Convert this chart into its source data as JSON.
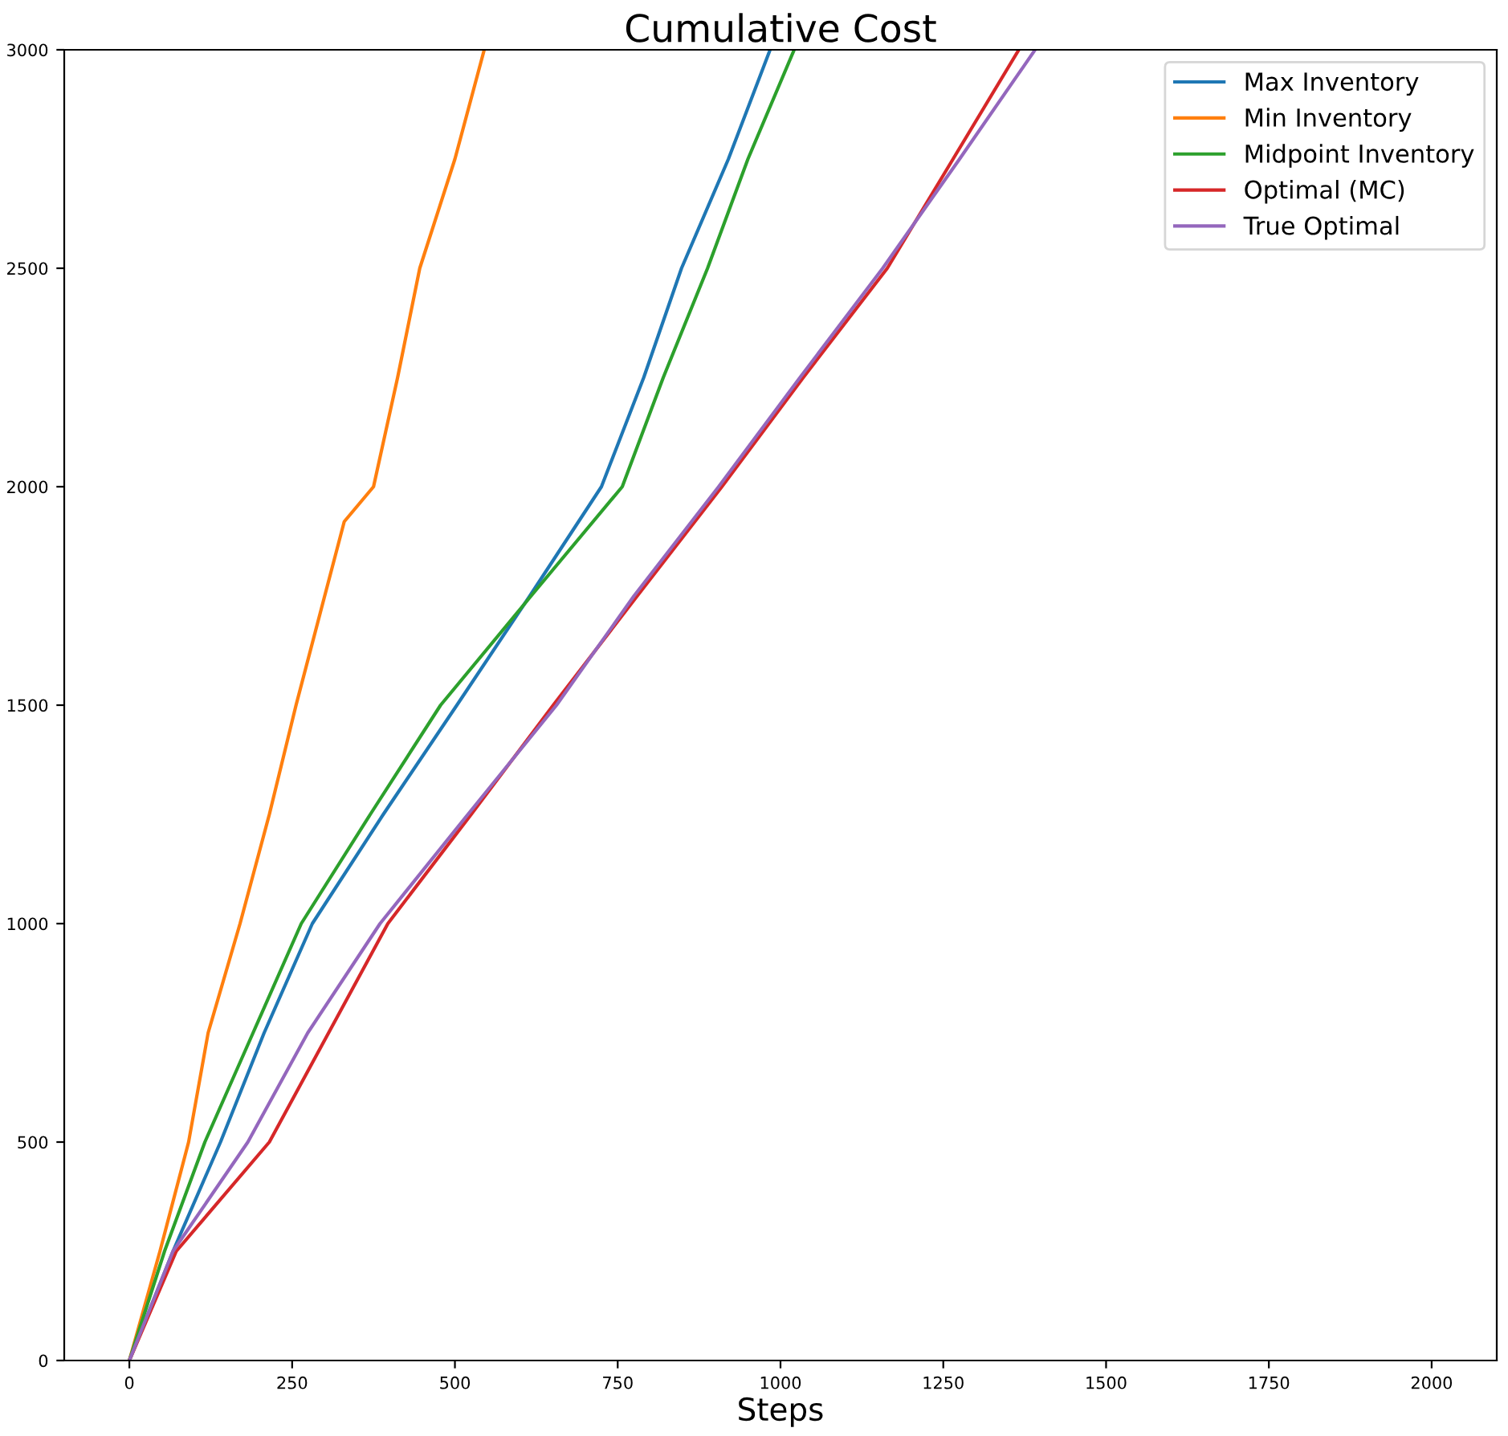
{
  "chart_data": {
    "type": "line",
    "title": "Cumulative Cost",
    "xlabel": "Steps",
    "xlim": [
      -100,
      2100
    ],
    "xticks": [
      0,
      250,
      500,
      750,
      1000,
      1250,
      1500,
      1750,
      2000
    ],
    "ylim": [
      0,
      3000
    ],
    "yticks": [
      0,
      500,
      1000,
      1500,
      2000,
      2500,
      3000
    ],
    "grid": false,
    "legend": "top right",
    "series": [
      {
        "name": "Max Inventory",
        "color": "#1f77b4",
        "x": [
          0,
          67,
          140,
          207,
          281,
          390,
          503,
          615,
          725,
          790,
          848,
          920,
          984
        ],
        "values": [
          0,
          250,
          500,
          750,
          1000,
          1250,
          1500,
          1750,
          2000,
          2250,
          2500,
          2750,
          3000
        ]
      },
      {
        "name": "Min Inventory",
        "color": "#ff7f0e",
        "x": [
          0,
          47,
          91,
          121,
          170,
          215,
          256,
          300,
          330,
          375,
          412,
          446,
          500,
          545
        ],
        "values": [
          0,
          250,
          500,
          750,
          1000,
          1250,
          1500,
          1750,
          1920,
          2000,
          2250,
          2500,
          2750,
          3000
        ]
      },
      {
        "name": "Midpoint Inventory",
        "color": "#2ca02c",
        "x": [
          0,
          54,
          116,
          190,
          264,
          370,
          478,
          617,
          757,
          820,
          888,
          950,
          1021
        ],
        "values": [
          0,
          250,
          500,
          750,
          1000,
          1250,
          1500,
          1750,
          2000,
          2250,
          2500,
          2750,
          3000
        ]
      },
      {
        "name": "Optimal (MC)",
        "color": "#d62728",
        "x": [
          0,
          72,
          215,
          306,
          397,
          525,
          651,
          780,
          910,
          1035,
          1164,
          1265,
          1366
        ],
        "values": [
          0,
          250,
          500,
          750,
          1000,
          1250,
          1500,
          1750,
          2000,
          2250,
          2500,
          2750,
          3000
        ]
      },
      {
        "name": "True Optimal",
        "color": "#9467bd",
        "x": [
          0,
          67,
          182,
          274,
          385,
          520,
          656,
          775,
          905,
          1030,
          1157,
          1275,
          1391
        ],
        "values": [
          0,
          250,
          500,
          750,
          1000,
          1250,
          1500,
          1750,
          2000,
          2250,
          2500,
          2750,
          3000
        ]
      }
    ]
  }
}
